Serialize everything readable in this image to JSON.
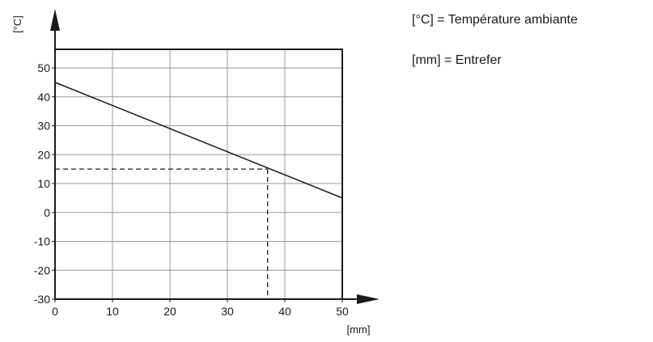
{
  "chart_data": {
    "type": "line",
    "xlabel": "[mm]",
    "ylabel": "[°C]",
    "xlim": [
      0,
      50
    ],
    "ylim": [
      -30,
      55
    ],
    "x_ticks": [
      0,
      10,
      20,
      30,
      40,
      50
    ],
    "y_ticks": [
      -30,
      -20,
      -10,
      0,
      10,
      20,
      30,
      40,
      50
    ],
    "grid": true,
    "series": [
      {
        "x": [
          0,
          50
        ],
        "y": [
          45,
          5
        ]
      }
    ],
    "reference_point": {
      "x": 37,
      "y": 15
    },
    "legend": [
      "[°C] = Température ambiante",
      "[mm] = Entrefer"
    ]
  },
  "colors": {
    "line": "#1a1a1a",
    "grid": "#9a9a9a"
  }
}
